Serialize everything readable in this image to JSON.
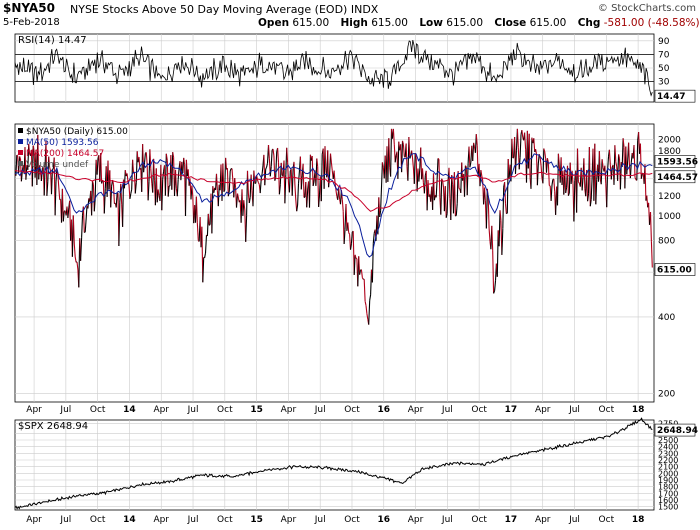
{
  "header": {
    "symbol": "$NYA50",
    "title": "NYSE Stocks Above 50 Day Moving Average (EOD)",
    "exchange": "INDX",
    "brand": "© StockCharts.com",
    "date": "5-Feb-2018",
    "open_label": "Open",
    "open": "615.00",
    "high_label": "High",
    "high": "615.00",
    "low_label": "Low",
    "low": "615.00",
    "close_label": "Close",
    "close": "615.00",
    "chg_label": "Chg",
    "chg": "-581.00 (-48.58%)"
  },
  "colors": {
    "price": "#000000",
    "price_down": "#b0001a",
    "ma50": "#0a1f9c",
    "ma200": "#c8002a",
    "rsi": "#000000",
    "spx": "#000000",
    "grid": "#cccccc"
  },
  "chart_data": [
    {
      "type": "line",
      "panel": "RSI",
      "legend": "RSI(14) 14.47",
      "last_value": 14.47,
      "last_value_label": "14.47",
      "ylim": [
        0,
        100
      ],
      "y_ticks": [
        30,
        50,
        70,
        90
      ],
      "levels": [
        30,
        70
      ],
      "x_points": [
        "2013-01",
        "2013-03",
        "2013-05",
        "2013-07",
        "2013-09",
        "2013-11",
        "2014-01",
        "2014-03",
        "2014-05",
        "2014-07",
        "2014-09",
        "2014-11",
        "2015-01",
        "2015-03",
        "2015-05",
        "2015-07",
        "2015-09",
        "2015-11",
        "2016-01",
        "2016-03",
        "2016-05",
        "2016-07",
        "2016-09",
        "2016-11",
        "2017-01",
        "2017-03",
        "2017-05",
        "2017-07",
        "2017-09",
        "2017-11",
        "2018-01",
        "2018-02"
      ],
      "values": [
        58,
        38,
        66,
        36,
        62,
        40,
        65,
        33,
        60,
        38,
        55,
        36,
        62,
        40,
        58,
        44,
        68,
        32,
        35,
        82,
        60,
        42,
        66,
        30,
        72,
        46,
        60,
        42,
        58,
        66,
        48,
        14.47
      ]
    },
    {
      "type": "line",
      "panel": "main",
      "scale": "log",
      "legend": [
        "$NYA50 (Daily) 615.00",
        "MA(50) 1593.56",
        "MA(200) 1464.57",
        "Volume undef"
      ],
      "ylim": [
        185,
        2300
      ],
      "y_ticks": [
        200,
        400,
        600,
        800,
        1000,
        1200,
        1400,
        1600,
        1800,
        2000
      ],
      "x_points": [
        "2013-01",
        "2013-03",
        "2013-05",
        "2013-07",
        "2013-09",
        "2013-11",
        "2014-01",
        "2014-03",
        "2014-05",
        "2014-07",
        "2014-09",
        "2014-11",
        "2015-01",
        "2015-03",
        "2015-05",
        "2015-07",
        "2015-09",
        "2015-11",
        "2016-01",
        "2016-03",
        "2016-05",
        "2016-07",
        "2016-09",
        "2016-11",
        "2017-01",
        "2017-03",
        "2017-05",
        "2017-07",
        "2017-09",
        "2017-11",
        "2018-01",
        "2018-02"
      ],
      "series": [
        {
          "name": "$NYA50",
          "last_label": "615.00",
          "values": [
            1500,
            1650,
            1400,
            650,
            1500,
            1050,
            1750,
            1300,
            1550,
            700,
            1450,
            1100,
            1700,
            1450,
            1300,
            1600,
            800,
            420,
            1900,
            1550,
            1350,
            1200,
            1750,
            550,
            1950,
            1650,
            1350,
            1400,
            1500,
            1550,
            1700,
            615
          ]
        },
        {
          "name": "MA(50)",
          "last_label": "1593.56",
          "values": [
            1450,
            1500,
            1500,
            1000,
            1200,
            1250,
            1550,
            1650,
            1500,
            1150,
            1200,
            1350,
            1450,
            1550,
            1500,
            1450,
            1150,
            650,
            1300,
            1800,
            1500,
            1400,
            1550,
            1000,
            1600,
            1700,
            1550,
            1450,
            1500,
            1550,
            1600,
            1593.56
          ]
        },
        {
          "name": "MA(200)",
          "last_label": "1464.57",
          "values": [
            1500,
            1480,
            1470,
            1400,
            1380,
            1350,
            1400,
            1450,
            1450,
            1380,
            1350,
            1350,
            1400,
            1420,
            1400,
            1380,
            1250,
            1050,
            1100,
            1250,
            1350,
            1400,
            1450,
            1350,
            1450,
            1480,
            1450,
            1430,
            1440,
            1450,
            1470,
            1464.57
          ]
        }
      ]
    },
    {
      "type": "line",
      "panel": "SPX",
      "legend": "$SPX 2648.94",
      "last_value_label": "2648.94",
      "ylim": [
        1450,
        2800
      ],
      "y_ticks": [
        1500,
        1600,
        1700,
        1800,
        1900,
        2000,
        2100,
        2200,
        2300,
        2400,
        2500,
        2600,
        2750
      ],
      "x_points": [
        "2013-01",
        "2013-04",
        "2013-07",
        "2013-10",
        "2014-01",
        "2014-04",
        "2014-07",
        "2014-10",
        "2015-01",
        "2015-04",
        "2015-07",
        "2015-10",
        "2016-01",
        "2016-02",
        "2016-04",
        "2016-07",
        "2016-10",
        "2017-01",
        "2017-04",
        "2017-07",
        "2017-10",
        "2018-01",
        "2018-02"
      ],
      "values": [
        1480,
        1570,
        1660,
        1720,
        1830,
        1880,
        1970,
        1950,
        2050,
        2100,
        2080,
        2020,
        1900,
        1850,
        2060,
        2150,
        2140,
        2270,
        2360,
        2460,
        2560,
        2810,
        2648.94
      ]
    }
  ],
  "x_axis": {
    "labels": [
      "Apr",
      "Jul",
      "Oct",
      "14",
      "Apr",
      "Jul",
      "Oct",
      "15",
      "Apr",
      "Jul",
      "Oct",
      "16",
      "Apr",
      "Jul",
      "Oct",
      "17",
      "Apr",
      "Jul",
      "Oct",
      "18"
    ],
    "bold": [
      "14",
      "15",
      "16",
      "17",
      "18"
    ]
  }
}
